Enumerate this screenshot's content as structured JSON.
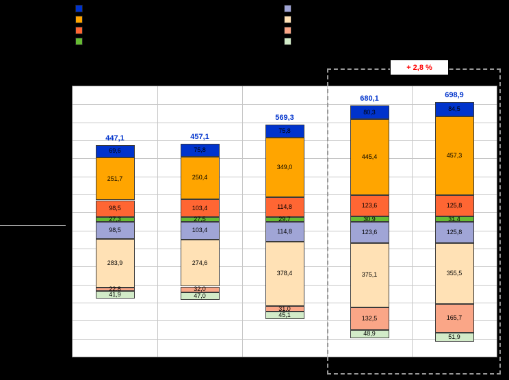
{
  "page": {
    "background": "#000000"
  },
  "annotation": {
    "change_label": "+ 2,8 %",
    "color": "#FF0000"
  },
  "legend": {
    "upper_group": [
      {
        "name": "blue",
        "color": "#0033CC",
        "label": ""
      },
      {
        "name": "orange",
        "color": "#FFA500",
        "label": ""
      },
      {
        "name": "red-orange",
        "color": "#FF6633",
        "label": ""
      },
      {
        "name": "green",
        "color": "#66BB33",
        "label": ""
      }
    ],
    "lower_group": [
      {
        "name": "lavender",
        "color": "#A0A5D6",
        "label": ""
      },
      {
        "name": "peach",
        "color": "#FFE1B5",
        "label": ""
      },
      {
        "name": "salmon",
        "color": "#FAA687",
        "label": ""
      },
      {
        "name": "pale-green",
        "color": "#D2EBC8",
        "label": ""
      }
    ]
  },
  "chart_data": {
    "type": "bar",
    "variant": "diverging-stacked",
    "columns": 5,
    "categories": [
      "",
      "",
      "",
      "",
      ""
    ],
    "totals": {
      "labels": [
        "447,1",
        "457,1",
        "569,3",
        "680,1",
        "698,9"
      ],
      "color": "#0033CC"
    },
    "upper_series": [
      {
        "name": "blue",
        "color": "#0033CC",
        "values": [
          69.6,
          75.8,
          75.8,
          80.3,
          84.5
        ],
        "labels": [
          "69,6",
          "75,8",
          "75,8",
          "80,3",
          "84,5"
        ]
      },
      {
        "name": "orange",
        "color": "#FFA500",
        "values": [
          251.7,
          250.4,
          349.0,
          445.4,
          457.3
        ],
        "labels": [
          "251,7",
          "250,4",
          "349,0",
          "445,4",
          "457,3"
        ]
      },
      {
        "name": "red-orange",
        "color": "#FF6633",
        "values": [
          98.5,
          103.4,
          114.8,
          123.6,
          125.8
        ],
        "labels": [
          "98,5",
          "103,4",
          "114,8",
          "123,6",
          "125,8"
        ]
      },
      {
        "name": "green",
        "color": "#66BB33",
        "values": [
          27.3,
          27.5,
          29.7,
          30.9,
          31.4
        ],
        "labels": [
          "27,3",
          "27,5",
          "29,7",
          "30,9",
          "31,4"
        ]
      }
    ],
    "lower_series": [
      {
        "name": "lavender",
        "color": "#A0A5D6",
        "values": [
          98.5,
          103.4,
          114.8,
          123.6,
          125.8
        ],
        "labels": [
          "98,5",
          "103,4",
          "114,8",
          "123,6",
          "125,8"
        ]
      },
      {
        "name": "peach",
        "color": "#FFE1B5",
        "values": [
          283.9,
          274.6,
          378.4,
          375.1,
          355.5
        ],
        "labels": [
          "283,9",
          "274,6",
          "378,4",
          "375,1",
          "355,5"
        ]
      },
      {
        "name": "salmon",
        "color": "#FAA687",
        "values": [
          22.8,
          32.0,
          31.0,
          132.5,
          165.7
        ],
        "labels": [
          "22,8",
          "32,0",
          "31,0",
          "132,5",
          "165,7"
        ]
      },
      {
        "name": "pale-green",
        "color": "#D2EBC8",
        "values": [
          41.9,
          47.0,
          45.1,
          48.9,
          51.9
        ],
        "labels": [
          "41,9",
          "47,0",
          "45,1",
          "48,9",
          "51,9"
        ]
      }
    ],
    "highlight": {
      "columns": [
        3,
        4
      ],
      "annotation": "+ 2,8 %"
    },
    "grid": {
      "h_rows": 15,
      "on": true
    },
    "legend_position": "top"
  }
}
